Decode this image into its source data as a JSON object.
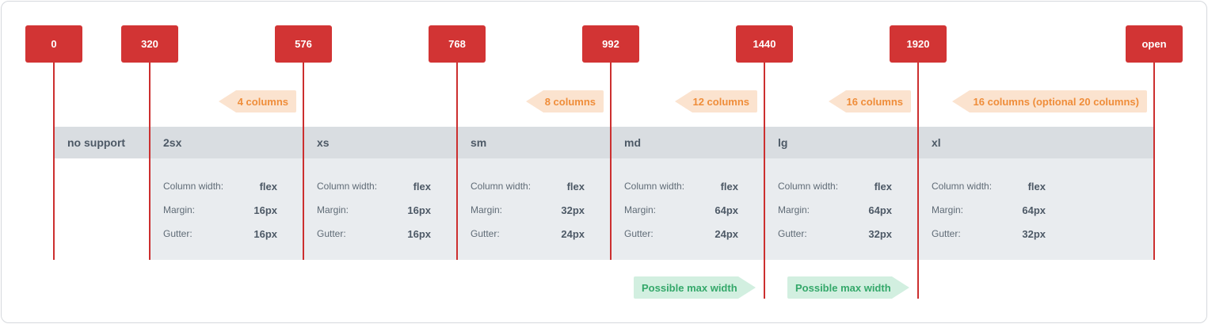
{
  "breakpoints": [
    "0",
    "320",
    "576",
    "768",
    "992",
    "1440",
    "1920",
    "open"
  ],
  "columns": [
    "4 columns",
    "8 columns",
    "12 columns",
    "16 columns",
    "16 columns (optional 20 columns)"
  ],
  "no_support": "no support",
  "segments": [
    {
      "name": "2sx",
      "specs": [
        {
          "label": "Column width:",
          "value": "flex"
        },
        {
          "label": "Margin:",
          "value": "16px"
        },
        {
          "label": "Gutter:",
          "value": "16px"
        }
      ]
    },
    {
      "name": "xs",
      "specs": [
        {
          "label": "Column width:",
          "value": "flex"
        },
        {
          "label": "Margin:",
          "value": "16px"
        },
        {
          "label": "Gutter:",
          "value": "16px"
        }
      ]
    },
    {
      "name": "sm",
      "specs": [
        {
          "label": "Column width:",
          "value": "flex"
        },
        {
          "label": "Margin:",
          "value": "32px"
        },
        {
          "label": "Gutter:",
          "value": "24px"
        }
      ]
    },
    {
      "name": "md",
      "specs": [
        {
          "label": "Column width:",
          "value": "flex"
        },
        {
          "label": "Margin:",
          "value": "64px"
        },
        {
          "label": "Gutter:",
          "value": "24px"
        }
      ]
    },
    {
      "name": "lg",
      "specs": [
        {
          "label": "Column width:",
          "value": "flex"
        },
        {
          "label": "Margin:",
          "value": "64px"
        },
        {
          "label": "Gutter:",
          "value": "32px"
        }
      ]
    },
    {
      "name": "xl",
      "specs": [
        {
          "label": "Column width:",
          "value": "flex"
        },
        {
          "label": "Margin:",
          "value": "64px"
        },
        {
          "label": "Gutter:",
          "value": "32px"
        }
      ]
    }
  ],
  "max_width": [
    "Possible max width",
    "Possible max width"
  ],
  "colors": {
    "breakpoint": "#d23434",
    "columns_bg": "#fbe3cf",
    "columns_text": "#ef8d3a",
    "max_bg": "#d2efe0",
    "max_text": "#34a86a"
  }
}
